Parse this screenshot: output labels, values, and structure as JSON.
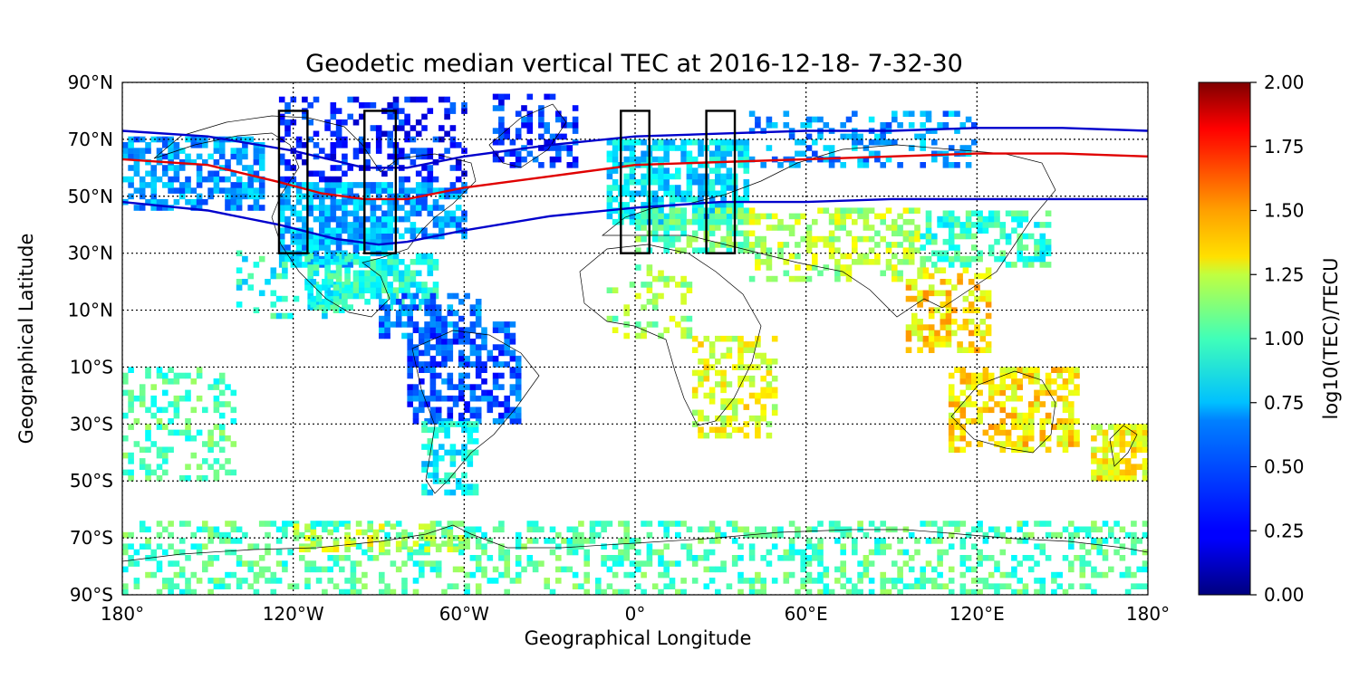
{
  "figure": {
    "title": "Geodetic median vertical TEC at 2016-12-18- 7-32-30",
    "xlabel": "Geographical Longitude",
    "ylabel": "Geographical Latitude",
    "xtick_labels": [
      "180°",
      "120°W",
      "60°W",
      "0°",
      "60°E",
      "120°E",
      "180°"
    ],
    "ytick_labels": [
      "90°N",
      "70°N",
      "50°N",
      "30°N",
      "10°N",
      "10°S",
      "30°S",
      "50°S",
      "70°S",
      "90°S"
    ]
  },
  "colorbar": {
    "label": "log10(TEC)/TECU",
    "tick_labels": [
      "0.00",
      "0.25",
      "0.50",
      "0.75",
      "1.00",
      "1.25",
      "1.50",
      "1.75",
      "2.00"
    ],
    "colormap": "jet",
    "range": [
      0,
      2
    ]
  },
  "chart_data": {
    "type": "heatmap",
    "projection": "equirectangular",
    "xlim": [
      -180,
      180
    ],
    "ylim": [
      -90,
      90
    ],
    "x_ticks": [
      -180,
      -120,
      -60,
      0,
      60,
      120,
      180
    ],
    "y_ticks": [
      90,
      70,
      50,
      30,
      10,
      -10,
      -30,
      -50,
      -70,
      -90
    ],
    "grid": "dotted",
    "value_range": [
      0,
      2
    ],
    "regions": [
      {
        "lon": [
          -180,
          -130
        ],
        "lat": [
          45,
          70
        ],
        "value": 0.55,
        "density": 0.6
      },
      {
        "lon": [
          -125,
          -85
        ],
        "lat": [
          25,
          55
        ],
        "value": 0.6,
        "density": 0.8
      },
      {
        "lon": [
          -85,
          -60
        ],
        "lat": [
          35,
          55
        ],
        "value": 0.55,
        "density": 0.6
      },
      {
        "lon": [
          -115,
          -70
        ],
        "lat": [
          10,
          30
        ],
        "value": 0.8,
        "density": 0.7
      },
      {
        "lon": [
          -90,
          -55
        ],
        "lat": [
          0,
          15
        ],
        "value": 0.5,
        "density": 0.55
      },
      {
        "lon": [
          -80,
          -40
        ],
        "lat": [
          -30,
          5
        ],
        "value": 0.4,
        "density": 0.6
      },
      {
        "lon": [
          -75,
          -55
        ],
        "lat": [
          -55,
          -30
        ],
        "value": 0.75,
        "density": 0.55
      },
      {
        "lon": [
          -125,
          -60
        ],
        "lat": [
          55,
          85
        ],
        "value": 0.3,
        "density": 0.35
      },
      {
        "lon": [
          -50,
          -20
        ],
        "lat": [
          60,
          85
        ],
        "value": 0.35,
        "density": 0.4
      },
      {
        "lon": [
          -10,
          40
        ],
        "lat": [
          40,
          70
        ],
        "value": 0.7,
        "density": 0.7
      },
      {
        "lon": [
          0,
          40
        ],
        "lat": [
          30,
          45
        ],
        "value": 0.95,
        "density": 0.6
      },
      {
        "lon": [
          40,
          120
        ],
        "lat": [
          60,
          80
        ],
        "value": 0.55,
        "density": 0.35
      },
      {
        "lon": [
          40,
          100
        ],
        "lat": [
          20,
          45
        ],
        "value": 1.1,
        "density": 0.4
      },
      {
        "lon": [
          100,
          145
        ],
        "lat": [
          25,
          45
        ],
        "value": 0.85,
        "density": 0.55
      },
      {
        "lon": [
          95,
          125
        ],
        "lat": [
          -5,
          25
        ],
        "value": 1.3,
        "density": 0.5
      },
      {
        "lon": [
          110,
          155
        ],
        "lat": [
          -40,
          -10
        ],
        "value": 1.3,
        "density": 0.55
      },
      {
        "lon": [
          160,
          180
        ],
        "lat": [
          -50,
          -30
        ],
        "value": 1.25,
        "density": 0.75
      },
      {
        "lon": [
          20,
          50
        ],
        "lat": [
          -35,
          0
        ],
        "value": 1.2,
        "density": 0.45
      },
      {
        "lon": [
          -10,
          20
        ],
        "lat": [
          0,
          25
        ],
        "value": 1.05,
        "density": 0.3
      },
      {
        "lon": [
          -180,
          -140
        ],
        "lat": [
          -50,
          -10
        ],
        "value": 0.9,
        "density": 0.35
      },
      {
        "lon": [
          -140,
          -100
        ],
        "lat": [
          5,
          30
        ],
        "value": 0.8,
        "density": 0.2
      },
      {
        "lon": [
          -180,
          180
        ],
        "lat": [
          -90,
          -65
        ],
        "value": 0.9,
        "density": 0.35
      },
      {
        "lon": [
          -120,
          -60
        ],
        "lat": [
          -75,
          -65
        ],
        "value": 1.15,
        "density": 0.45
      }
    ],
    "lines": [
      {
        "color": "#0000cc",
        "points": [
          [
            -180,
            73
          ],
          [
            -150,
            71
          ],
          [
            -120,
            66
          ],
          [
            -95,
            60
          ],
          [
            -80,
            60
          ],
          [
            -60,
            64
          ],
          [
            -30,
            68
          ],
          [
            0,
            71
          ],
          [
            30,
            72
          ],
          [
            60,
            73
          ],
          [
            90,
            73
          ],
          [
            120,
            74
          ],
          [
            150,
            74
          ],
          [
            180,
            73
          ]
        ]
      },
      {
        "color": "#e00000",
        "points": [
          [
            -180,
            63
          ],
          [
            -150,
            61
          ],
          [
            -125,
            55
          ],
          [
            -110,
            51
          ],
          [
            -95,
            49
          ],
          [
            -80,
            49
          ],
          [
            -60,
            53
          ],
          [
            -30,
            57
          ],
          [
            0,
            61
          ],
          [
            30,
            62
          ],
          [
            60,
            63
          ],
          [
            90,
            64
          ],
          [
            120,
            65
          ],
          [
            150,
            65
          ],
          [
            180,
            64
          ]
        ]
      },
      {
        "color": "#0000cc",
        "points": [
          [
            -180,
            48
          ],
          [
            -150,
            45
          ],
          [
            -125,
            40
          ],
          [
            -105,
            35
          ],
          [
            -90,
            33
          ],
          [
            -80,
            34
          ],
          [
            -60,
            38
          ],
          [
            -30,
            43
          ],
          [
            0,
            46
          ],
          [
            30,
            48
          ],
          [
            60,
            48
          ],
          [
            90,
            49
          ],
          [
            120,
            49
          ],
          [
            150,
            49
          ],
          [
            180,
            49
          ]
        ]
      }
    ],
    "boxes": [
      {
        "lon": [
          -125,
          -115
        ],
        "lat": [
          30,
          80
        ]
      },
      {
        "lon": [
          -95,
          -84
        ],
        "lat": [
          30,
          80
        ]
      },
      {
        "lon": [
          -5,
          5
        ],
        "lat": [
          30,
          80
        ]
      },
      {
        "lon": [
          25,
          35
        ],
        "lat": [
          30,
          80
        ]
      }
    ]
  }
}
